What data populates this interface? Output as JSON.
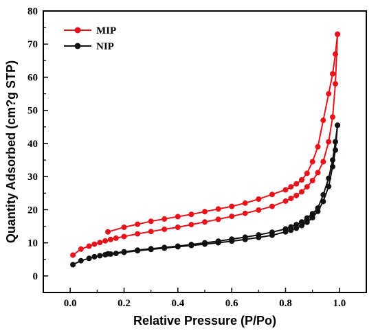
{
  "chart_data": {
    "type": "line",
    "title": "",
    "xlabel": "Relative Pressure (P/Po)",
    "ylabel": "Quantity Adsorbed (cm?g STP)",
    "xlim": [
      -0.1,
      1.1
    ],
    "ylim": [
      -5,
      80
    ],
    "xticks": [
      "0.0",
      "0.2",
      "0.4",
      "0.6",
      "0.8",
      "1.0"
    ],
    "yticks": [
      "0",
      "10",
      "20",
      "30",
      "40",
      "50",
      "60",
      "70",
      "80"
    ],
    "legend_position": "top-left",
    "grid": false,
    "series": [
      {
        "name": "MIP",
        "color": "#e8121a",
        "adsorption": {
          "x": [
            0.01,
            0.04,
            0.07,
            0.09,
            0.11,
            0.13,
            0.15,
            0.17,
            0.2,
            0.25,
            0.3,
            0.35,
            0.4,
            0.45,
            0.5,
            0.55,
            0.6,
            0.65,
            0.7,
            0.75,
            0.8,
            0.82,
            0.84,
            0.86,
            0.88,
            0.9,
            0.92,
            0.94,
            0.96,
            0.975,
            0.985,
            0.993
          ],
          "y": [
            6.3,
            8.1,
            9.0,
            9.6,
            10.1,
            10.6,
            11.0,
            11.4,
            11.9,
            12.7,
            13.4,
            14.1,
            14.7,
            15.5,
            16.3,
            17.1,
            18.0,
            18.9,
            19.9,
            21.0,
            22.6,
            23.4,
            24.3,
            25.4,
            26.9,
            28.8,
            31.2,
            34.5,
            40.5,
            48.0,
            58.0,
            73.0
          ]
        },
        "desorption": {
          "x": [
            0.993,
            0.985,
            0.975,
            0.96,
            0.94,
            0.92,
            0.9,
            0.88,
            0.86,
            0.84,
            0.82,
            0.8,
            0.75,
            0.7,
            0.65,
            0.6,
            0.55,
            0.5,
            0.45,
            0.4,
            0.35,
            0.3,
            0.25,
            0.2,
            0.14
          ],
          "y": [
            73.0,
            67.0,
            61.0,
            55.0,
            47.0,
            39.0,
            34.5,
            31.0,
            29.0,
            27.8,
            26.9,
            26.0,
            24.6,
            23.2,
            22.0,
            21.0,
            20.2,
            19.4,
            18.6,
            17.9,
            17.2,
            16.5,
            15.6,
            14.7,
            13.3
          ]
        }
      },
      {
        "name": "NIP",
        "color": "#111111",
        "adsorption": {
          "x": [
            0.01,
            0.04,
            0.07,
            0.09,
            0.11,
            0.13,
            0.15,
            0.17,
            0.2,
            0.25,
            0.3,
            0.35,
            0.4,
            0.45,
            0.5,
            0.55,
            0.6,
            0.65,
            0.7,
            0.75,
            0.8,
            0.82,
            0.84,
            0.86,
            0.88,
            0.9,
            0.92,
            0.94,
            0.96,
            0.975,
            0.985,
            0.993
          ],
          "y": [
            3.4,
            4.6,
            5.3,
            5.8,
            6.1,
            6.4,
            6.6,
            6.8,
            7.1,
            7.6,
            8.0,
            8.4,
            8.8,
            9.2,
            9.6,
            10.0,
            10.5,
            11.0,
            11.6,
            12.3,
            13.3,
            13.8,
            14.4,
            15.2,
            16.2,
            17.6,
            19.5,
            22.5,
            27.0,
            33.0,
            38.0,
            45.5
          ]
        },
        "desorption": {
          "x": [
            0.993,
            0.985,
            0.975,
            0.96,
            0.94,
            0.92,
            0.9,
            0.88,
            0.86,
            0.84,
            0.82,
            0.8,
            0.75,
            0.7,
            0.65,
            0.6,
            0.55,
            0.5,
            0.45,
            0.4,
            0.35,
            0.3,
            0.25,
            0.2,
            0.14
          ],
          "y": [
            45.5,
            40.5,
            35.0,
            29.5,
            24.5,
            20.5,
            18.8,
            17.5,
            16.3,
            15.5,
            14.8,
            14.2,
            13.2,
            12.4,
            11.7,
            11.1,
            10.5,
            10.0,
            9.5,
            9.0,
            8.6,
            8.2,
            7.8,
            7.3,
            6.7
          ]
        }
      }
    ]
  }
}
